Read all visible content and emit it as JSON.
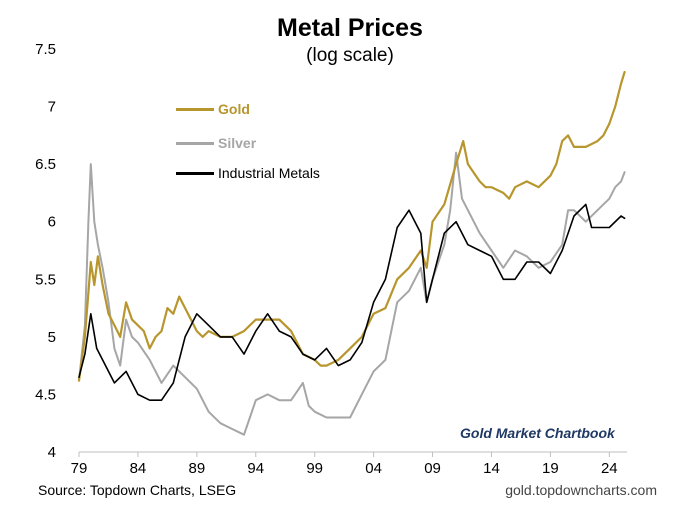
{
  "header": {
    "title": "Metal Prices",
    "subtitle": "(log scale)"
  },
  "footer": {
    "source": "Source: Topdown Charts, LSEG",
    "website": "gold.topdowncharts.com"
  },
  "watermark": "Gold Market Chartbook",
  "chart_data": {
    "type": "line",
    "title": "Metal Prices",
    "subtitle": "(log scale)",
    "xlabel": "",
    "ylabel": "",
    "xlim": [
      1979,
      2025.5
    ],
    "ylim": [
      4,
      7.5
    ],
    "x_ticks": [
      "79",
      "84",
      "89",
      "94",
      "99",
      "04",
      "09",
      "14",
      "19",
      "24"
    ],
    "x_tick_values": [
      1979,
      1984,
      1989,
      1994,
      1999,
      2004,
      2009,
      2014,
      2019,
      2024
    ],
    "y_ticks": [
      "4",
      "4.5",
      "5",
      "5.5",
      "6",
      "6.5",
      "7",
      "7.5"
    ],
    "y_tick_values": [
      4,
      4.5,
      5,
      5.5,
      6,
      6.5,
      7,
      7.5
    ],
    "grid": false,
    "legend_position": "top-left",
    "series": [
      {
        "name": "Gold",
        "color": "#b8962e",
        "points": [
          [
            1979,
            4.62
          ],
          [
            1979.5,
            5.0
          ],
          [
            1980.0,
            5.65
          ],
          [
            1980.3,
            5.45
          ],
          [
            1980.6,
            5.7
          ],
          [
            1981,
            5.45
          ],
          [
            1981.5,
            5.2
          ],
          [
            1982,
            5.1
          ],
          [
            1982.5,
            5.0
          ],
          [
            1983,
            5.3
          ],
          [
            1983.5,
            5.15
          ],
          [
            1984,
            5.1
          ],
          [
            1984.5,
            5.05
          ],
          [
            1985,
            4.9
          ],
          [
            1985.5,
            5.0
          ],
          [
            1986,
            5.05
          ],
          [
            1986.5,
            5.25
          ],
          [
            1987,
            5.2
          ],
          [
            1987.5,
            5.35
          ],
          [
            1988,
            5.25
          ],
          [
            1988.5,
            5.15
          ],
          [
            1989,
            5.05
          ],
          [
            1989.5,
            5.0
          ],
          [
            1990,
            5.05
          ],
          [
            1991,
            5.0
          ],
          [
            1992,
            5.0
          ],
          [
            1993,
            5.05
          ],
          [
            1994,
            5.15
          ],
          [
            1995,
            5.15
          ],
          [
            1996,
            5.15
          ],
          [
            1997,
            5.05
          ],
          [
            1998,
            4.85
          ],
          [
            1999,
            4.8
          ],
          [
            1999.5,
            4.75
          ],
          [
            2000,
            4.75
          ],
          [
            2001,
            4.8
          ],
          [
            2002,
            4.9
          ],
          [
            2003,
            5.0
          ],
          [
            2004,
            5.2
          ],
          [
            2005,
            5.25
          ],
          [
            2006,
            5.5
          ],
          [
            2007,
            5.6
          ],
          [
            2008,
            5.75
          ],
          [
            2008.5,
            5.6
          ],
          [
            2009,
            6.0
          ],
          [
            2010,
            6.15
          ],
          [
            2011,
            6.5
          ],
          [
            2011.6,
            6.7
          ],
          [
            2012,
            6.5
          ],
          [
            2013,
            6.35
          ],
          [
            2013.5,
            6.3
          ],
          [
            2014,
            6.3
          ],
          [
            2015,
            6.25
          ],
          [
            2015.5,
            6.2
          ],
          [
            2016,
            6.3
          ],
          [
            2017,
            6.35
          ],
          [
            2018,
            6.3
          ],
          [
            2019,
            6.4
          ],
          [
            2019.5,
            6.5
          ],
          [
            2020,
            6.7
          ],
          [
            2020.5,
            6.75
          ],
          [
            2021,
            6.65
          ],
          [
            2022,
            6.65
          ],
          [
            2023,
            6.7
          ],
          [
            2023.5,
            6.75
          ],
          [
            2024,
            6.85
          ],
          [
            2024.5,
            7.0
          ],
          [
            2025,
            7.2
          ],
          [
            2025.3,
            7.3
          ]
        ]
      },
      {
        "name": "Silver",
        "color": "#a6a6a6",
        "points": [
          [
            1979,
            4.62
          ],
          [
            1979.5,
            5.1
          ],
          [
            1979.8,
            6.0
          ],
          [
            1980.0,
            6.5
          ],
          [
            1980.3,
            6.0
          ],
          [
            1980.6,
            5.8
          ],
          [
            1981,
            5.6
          ],
          [
            1981.5,
            5.3
          ],
          [
            1982,
            4.9
          ],
          [
            1982.5,
            4.75
          ],
          [
            1983,
            5.15
          ],
          [
            1983.5,
            5.0
          ],
          [
            1984,
            4.95
          ],
          [
            1985,
            4.8
          ],
          [
            1986,
            4.6
          ],
          [
            1987,
            4.75
          ],
          [
            1988,
            4.65
          ],
          [
            1989,
            4.55
          ],
          [
            1989.5,
            4.45
          ],
          [
            1990,
            4.35
          ],
          [
            1991,
            4.25
          ],
          [
            1992,
            4.2
          ],
          [
            1993,
            4.15
          ],
          [
            1993.5,
            4.3
          ],
          [
            1994,
            4.45
          ],
          [
            1995,
            4.5
          ],
          [
            1996,
            4.45
          ],
          [
            1997,
            4.45
          ],
          [
            1998,
            4.6
          ],
          [
            1998.5,
            4.4
          ],
          [
            1999,
            4.35
          ],
          [
            2000,
            4.3
          ],
          [
            2001,
            4.3
          ],
          [
            2002,
            4.3
          ],
          [
            2003,
            4.5
          ],
          [
            2004,
            4.7
          ],
          [
            2005,
            4.8
          ],
          [
            2006,
            5.3
          ],
          [
            2007,
            5.4
          ],
          [
            2008,
            5.6
          ],
          [
            2008.5,
            5.3
          ],
          [
            2009,
            5.5
          ],
          [
            2010,
            5.8
          ],
          [
            2010.5,
            6.1
          ],
          [
            2011,
            6.6
          ],
          [
            2011.5,
            6.2
          ],
          [
            2012,
            6.1
          ],
          [
            2013,
            5.9
          ],
          [
            2014,
            5.75
          ],
          [
            2015,
            5.6
          ],
          [
            2016,
            5.75
          ],
          [
            2017,
            5.7
          ],
          [
            2018,
            5.6
          ],
          [
            2019,
            5.65
          ],
          [
            2020,
            5.8
          ],
          [
            2020.5,
            6.1
          ],
          [
            2021,
            6.1
          ],
          [
            2022,
            6.0
          ],
          [
            2023,
            6.1
          ],
          [
            2024,
            6.2
          ],
          [
            2024.5,
            6.3
          ],
          [
            2025,
            6.35
          ],
          [
            2025.3,
            6.43
          ]
        ]
      },
      {
        "name": "Industrial Metals",
        "color": "#000000",
        "points": [
          [
            1979,
            4.65
          ],
          [
            1979.5,
            4.85
          ],
          [
            1980.0,
            5.2
          ],
          [
            1980.5,
            4.9
          ],
          [
            1981,
            4.8
          ],
          [
            1982,
            4.6
          ],
          [
            1983,
            4.7
          ],
          [
            1984,
            4.5
          ],
          [
            1985,
            4.45
          ],
          [
            1986,
            4.45
          ],
          [
            1987,
            4.6
          ],
          [
            1988,
            5.0
          ],
          [
            1988.5,
            5.1
          ],
          [
            1989,
            5.2
          ],
          [
            1990,
            5.1
          ],
          [
            1991,
            5.0
          ],
          [
            1992,
            5.0
          ],
          [
            1993,
            4.85
          ],
          [
            1994,
            5.05
          ],
          [
            1995,
            5.2
          ],
          [
            1996,
            5.05
          ],
          [
            1997,
            5.0
          ],
          [
            1998,
            4.85
          ],
          [
            1999,
            4.8
          ],
          [
            2000,
            4.9
          ],
          [
            2001,
            4.75
          ],
          [
            2002,
            4.8
          ],
          [
            2003,
            4.95
          ],
          [
            2004,
            5.3
          ],
          [
            2005,
            5.5
          ],
          [
            2006,
            5.95
          ],
          [
            2007,
            6.1
          ],
          [
            2008,
            5.9
          ],
          [
            2008.5,
            5.3
          ],
          [
            2009,
            5.5
          ],
          [
            2010,
            5.9
          ],
          [
            2011,
            6.0
          ],
          [
            2012,
            5.8
          ],
          [
            2013,
            5.75
          ],
          [
            2014,
            5.7
          ],
          [
            2015,
            5.5
          ],
          [
            2016,
            5.5
          ],
          [
            2017,
            5.65
          ],
          [
            2018,
            5.65
          ],
          [
            2019,
            5.55
          ],
          [
            2020,
            5.75
          ],
          [
            2021,
            6.05
          ],
          [
            2022,
            6.15
          ],
          [
            2022.5,
            5.95
          ],
          [
            2023,
            5.95
          ],
          [
            2024,
            5.95
          ],
          [
            2025,
            6.05
          ],
          [
            2025.3,
            6.03
          ]
        ]
      }
    ]
  }
}
